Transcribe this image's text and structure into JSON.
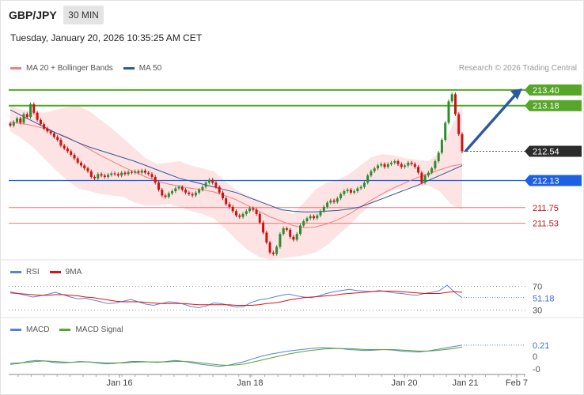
{
  "header": {
    "symbol": "GBP/JPY",
    "timeframe": "30 MIN",
    "datetime": "Tuesday, January 20, 2026 10:35:25 AM CET",
    "credit": "Research © 2026 Trading Central"
  },
  "legends": {
    "main": [
      {
        "label": "MA 20 + Bollinger Bands",
        "color": "#f08080"
      },
      {
        "label": "MA 50",
        "color": "#2c5aa0"
      }
    ],
    "rsi": [
      {
        "label": "RSI",
        "color": "#5b7fd6"
      },
      {
        "label": "9MA",
        "color": "#dd1111"
      }
    ],
    "macd": [
      {
        "label": "MACD",
        "color": "#5b7fd6"
      },
      {
        "label": "MACD Signal",
        "color": "#55a629"
      }
    ]
  },
  "colors": {
    "bull": "#2e8b2e",
    "bear": "#cc1111",
    "resistance_green": "#55a629",
    "support_blue": "#1e5fe6",
    "level_red": "#ee7777",
    "band_fill": "#fde3e3",
    "ma20": "#f08080",
    "ma50": "#2c5aa0",
    "arrow": "#2c5aa0"
  },
  "chart_data": {
    "type": "candlestick",
    "price_range": [
      211.05,
      213.52
    ],
    "x_ticks": [
      "Jan 16",
      "Jan 18",
      "Jan 20",
      "Jan 21",
      "Feb 7"
    ],
    "levels": [
      {
        "label": "213.40",
        "value": 213.4,
        "style": "resistance"
      },
      {
        "label": "213.18",
        "value": 213.18,
        "style": "resistance"
      },
      {
        "label": "212.54",
        "value": 212.54,
        "style": "current"
      },
      {
        "label": "212.13",
        "value": 212.13,
        "style": "support"
      },
      {
        "label": "211.75",
        "value": 211.75,
        "style": "minor"
      },
      {
        "label": "211.53",
        "value": 211.53,
        "style": "minor"
      }
    ],
    "candles": [
      212.9,
      212.95,
      213.0,
      212.94,
      213.06,
      213.02,
      213.2,
      213.08,
      212.98,
      212.92,
      212.86,
      212.82,
      212.79,
      212.74,
      212.7,
      212.62,
      212.58,
      212.54,
      212.49,
      212.44,
      212.38,
      212.34,
      212.3,
      212.26,
      212.18,
      212.16,
      212.22,
      212.2,
      212.18,
      212.21,
      212.23,
      212.22,
      212.2,
      212.24,
      212.22,
      212.25,
      212.24,
      212.26,
      212.24,
      212.27,
      212.24,
      212.22,
      212.18,
      212.1,
      212.0,
      211.92,
      211.9,
      211.95,
      211.98,
      212.02,
      212.04,
      212.0,
      211.96,
      211.94,
      211.92,
      211.96,
      212.0,
      212.04,
      212.1,
      212.14,
      212.1,
      212.04,
      211.96,
      211.88,
      211.8,
      211.76,
      211.7,
      211.64,
      211.62,
      211.66,
      211.7,
      211.74,
      211.72,
      211.66,
      211.54,
      211.4,
      211.26,
      211.12,
      211.1,
      211.2,
      211.38,
      211.46,
      211.44,
      211.34,
      211.3,
      211.38,
      211.5,
      211.56,
      211.6,
      211.63,
      211.6,
      211.64,
      211.7,
      211.76,
      211.82,
      211.85,
      211.83,
      211.88,
      211.94,
      211.98,
      212.0,
      211.96,
      211.98,
      212.02,
      212.04,
      212.1,
      212.2,
      212.26,
      212.3,
      212.34,
      212.36,
      212.32,
      212.36,
      212.38,
      212.4,
      212.36,
      212.32,
      212.34,
      212.38,
      212.36,
      212.32,
      212.24,
      212.1,
      212.2,
      212.24,
      212.3,
      212.4,
      212.52,
      212.7,
      212.94,
      213.24,
      213.34,
      213.06,
      212.78,
      212.54
    ],
    "ma20": [
      212.95,
      212.93,
      212.9,
      212.86,
      212.8,
      212.74,
      212.66,
      212.57,
      212.48,
      212.4,
      212.32,
      212.25,
      212.18,
      212.12,
      212.08,
      212.05,
      212.02,
      212.0,
      211.97,
      211.92,
      211.86,
      211.78,
      211.7,
      211.62,
      211.56,
      211.5,
      211.47,
      211.48,
      211.52,
      211.58,
      211.66,
      211.76,
      211.86,
      211.95,
      212.03,
      212.1,
      212.17,
      212.22,
      212.28,
      212.33,
      212.36
    ],
    "ma50": [
      213.12,
      213.04,
      212.96,
      212.88,
      212.8,
      212.73,
      212.66,
      212.6,
      212.55,
      212.5,
      212.45,
      212.4,
      212.34,
      212.28,
      212.22,
      212.16,
      212.12,
      212.08,
      212.04,
      212.0,
      211.96,
      211.9,
      211.84,
      211.78,
      211.72,
      211.7,
      211.69,
      211.69,
      211.7,
      211.71,
      211.73,
      211.76,
      211.82,
      211.88,
      211.94,
      212.0,
      212.06,
      212.13,
      212.2,
      212.27,
      212.34
    ],
    "bb_upper": [
      213.18,
      213.12,
      213.1,
      213.08,
      213.12,
      213.16,
      213.18,
      213.1,
      212.98,
      212.86,
      212.72,
      212.58,
      212.44,
      212.36,
      212.38,
      212.4,
      212.34,
      212.3,
      212.26,
      212.12,
      212.0,
      211.92,
      211.86,
      211.76,
      211.72,
      211.66,
      211.82,
      212.0,
      212.1,
      212.14,
      212.22,
      212.34,
      212.46,
      212.5,
      212.48,
      212.44,
      212.42,
      212.4,
      212.52,
      212.86,
      213.2
    ],
    "bb_lower": [
      212.82,
      212.72,
      212.6,
      212.44,
      212.28,
      212.14,
      212.02,
      211.98,
      211.94,
      211.92,
      211.9,
      211.82,
      211.78,
      211.78,
      211.8,
      211.76,
      211.7,
      211.66,
      211.6,
      211.46,
      211.3,
      211.16,
      211.06,
      211.02,
      211.04,
      211.06,
      211.08,
      211.12,
      211.22,
      211.36,
      211.5,
      211.66,
      211.8,
      211.92,
      212.0,
      212.02,
      212.04,
      212.06,
      211.98,
      211.8,
      211.72
    ],
    "arrow": {
      "from": 212.54,
      "to": 213.42
    },
    "rsi": {
      "ticks": [
        "70",
        "30"
      ],
      "current_label": "51.18",
      "current": 51.18,
      "range": [
        20,
        80
      ],
      "series": [
        61,
        58,
        55,
        52,
        54,
        57,
        60,
        56,
        52,
        49,
        50,
        47,
        44,
        41,
        42,
        45,
        48,
        44,
        40,
        38,
        41,
        44,
        43,
        40,
        36,
        34,
        37,
        42,
        41,
        38,
        35,
        36,
        43,
        47,
        49,
        52,
        55,
        57,
        54,
        52,
        51,
        54,
        58,
        61,
        63,
        65,
        63,
        62,
        61,
        63,
        61,
        59,
        58,
        56,
        55,
        58,
        60,
        63,
        72,
        60,
        51
      ],
      "ma9": [
        59,
        58,
        57,
        56,
        55,
        55,
        56,
        56,
        55,
        54,
        52,
        51,
        49,
        47,
        45,
        44,
        44,
        44,
        43,
        42,
        41,
        41,
        41,
        41,
        40,
        39,
        39,
        39,
        39,
        39,
        38,
        38,
        38,
        39,
        41,
        42,
        44,
        47,
        49,
        51,
        52,
        53,
        54,
        55,
        57,
        58,
        59,
        60,
        61,
        62,
        62,
        62,
        61,
        60,
        59,
        58,
        58,
        58,
        60,
        61,
        60
      ]
    },
    "macd": {
      "ticks": [
        "0.21",
        "0",
        "-0"
      ],
      "current_label": "0.21",
      "current": 0.21,
      "range": [
        -0.32,
        0.32
      ],
      "macd": [
        -0.18,
        -0.16,
        -0.12,
        -0.1,
        -0.11,
        -0.14,
        -0.15,
        -0.14,
        -0.12,
        -0.13,
        -0.15,
        -0.17,
        -0.16,
        -0.14,
        -0.12,
        -0.12,
        -0.13,
        -0.14,
        -0.12,
        -0.1,
        -0.12,
        -0.15,
        -0.18,
        -0.2,
        -0.22,
        -0.2,
        -0.16,
        -0.12,
        -0.06,
        -0.01,
        0.03,
        0.06,
        0.09,
        0.11,
        0.13,
        0.15,
        0.16,
        0.15,
        0.14,
        0.12,
        0.11,
        0.1,
        0.11,
        0.12,
        0.11,
        0.09,
        0.08,
        0.07,
        0.09,
        0.12,
        0.15,
        0.18,
        0.21
      ],
      "signal": [
        -0.16,
        -0.15,
        -0.14,
        -0.12,
        -0.11,
        -0.12,
        -0.13,
        -0.14,
        -0.13,
        -0.13,
        -0.14,
        -0.15,
        -0.15,
        -0.15,
        -0.14,
        -0.13,
        -0.13,
        -0.13,
        -0.13,
        -0.12,
        -0.12,
        -0.13,
        -0.15,
        -0.17,
        -0.19,
        -0.2,
        -0.19,
        -0.17,
        -0.13,
        -0.09,
        -0.05,
        -0.01,
        0.03,
        0.06,
        0.09,
        0.11,
        0.13,
        0.14,
        0.14,
        0.14,
        0.13,
        0.12,
        0.12,
        0.12,
        0.12,
        0.11,
        0.1,
        0.09,
        0.09,
        0.1,
        0.12,
        0.14,
        0.17
      ]
    }
  }
}
